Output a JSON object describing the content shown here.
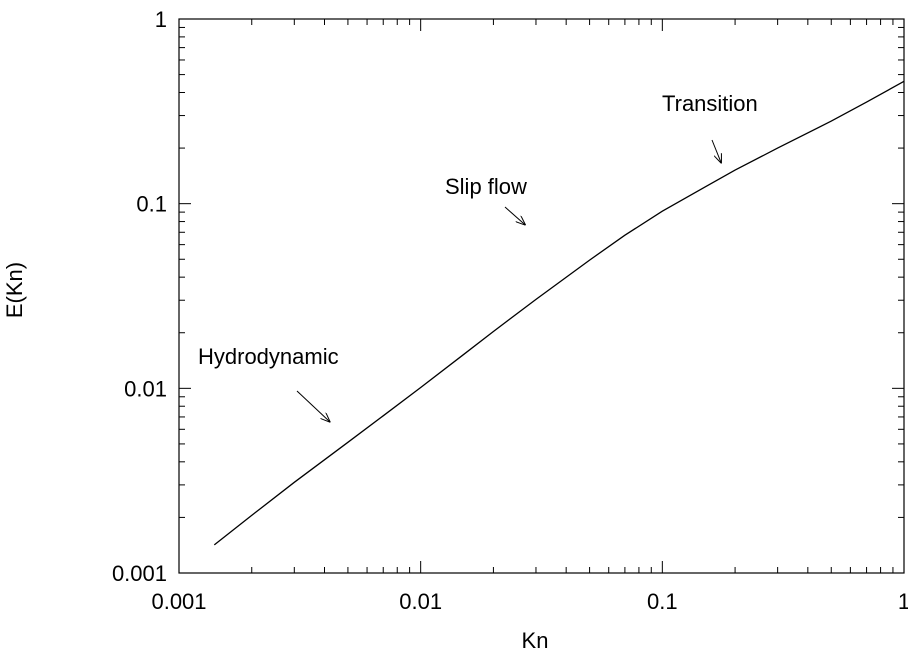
{
  "chart_data": {
    "type": "line",
    "xlabel": "Kn",
    "ylabel": "E(Kn)",
    "xscale": "log",
    "yscale": "log",
    "xlim": [
      0.001,
      1
    ],
    "ylim": [
      0.001,
      1
    ],
    "grid": false,
    "x_ticks": [
      "0.001",
      "0.01",
      "0.1",
      "1"
    ],
    "y_ticks": [
      "0.001",
      "0.01",
      "0.1",
      "1"
    ],
    "series": [
      {
        "x": [
          0.0014,
          0.002,
          0.003,
          0.005,
          0.007,
          0.01,
          0.015,
          0.02,
          0.03,
          0.05,
          0.07,
          0.1,
          0.15,
          0.2,
          0.3,
          0.5,
          0.7,
          1.0
        ],
        "y": [
          0.00142,
          0.00205,
          0.0031,
          0.0051,
          0.0071,
          0.0101,
          0.0152,
          0.0203,
          0.0303,
          0.0495,
          0.0675,
          0.091,
          0.123,
          0.152,
          0.2,
          0.28,
          0.355,
          0.46
        ]
      }
    ],
    "annotations": [
      {
        "text": "Hydrodynamic",
        "point": [
          0.0042,
          0.0066
        ]
      },
      {
        "text": "Slip flow",
        "point": [
          0.027,
          0.077
        ]
      },
      {
        "text": "Transition",
        "point": [
          0.175,
          0.167
        ]
      }
    ]
  }
}
